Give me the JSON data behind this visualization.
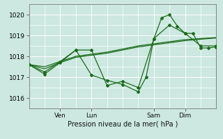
{
  "bg_color": "#cce8e0",
  "grid_color": "#ffffff",
  "line_color": "#1a6b1a",
  "marker_color": "#1a6b1a",
  "xlim": [
    0,
    72
  ],
  "ylim": [
    1015.5,
    1020.5
  ],
  "yticks": [
    1016,
    1017,
    1018,
    1019,
    1020
  ],
  "xtick_labels": [
    "Ven",
    "Lun",
    "Sam",
    "Dim"
  ],
  "xtick_positions": [
    12,
    24,
    48,
    60
  ],
  "xlabel": "Pression niveau de la mer( hPa )",
  "series1_x": [
    0,
    6,
    12,
    18,
    24,
    30,
    36,
    42,
    48,
    54,
    60,
    66,
    72
  ],
  "series1_y": [
    1017.6,
    1017.5,
    1017.75,
    1018.0,
    1018.1,
    1018.2,
    1018.35,
    1018.5,
    1018.6,
    1018.7,
    1018.8,
    1018.85,
    1018.9
  ],
  "series2_x": [
    0,
    6,
    12,
    18,
    24,
    30,
    36,
    42,
    48,
    54,
    60,
    66,
    72
  ],
  "series2_y": [
    1017.6,
    1017.4,
    1017.7,
    1017.95,
    1018.05,
    1018.15,
    1018.3,
    1018.45,
    1018.55,
    1018.65,
    1018.75,
    1018.82,
    1018.88
  ],
  "series3_x": [
    0,
    6,
    12,
    18,
    24,
    30,
    36,
    42,
    48,
    54,
    60,
    66,
    72
  ],
  "series3_y": [
    1017.6,
    1017.25,
    1017.75,
    1018.3,
    1018.3,
    1016.6,
    1016.8,
    1016.5,
    1018.85,
    1019.5,
    1019.1,
    1018.5,
    1018.5
  ],
  "series4_x": [
    0,
    6,
    12,
    18,
    24,
    30,
    36,
    42,
    45,
    48,
    51,
    54,
    57,
    60,
    63,
    66,
    69,
    72
  ],
  "series4_y": [
    1017.6,
    1017.15,
    1017.7,
    1018.3,
    1017.1,
    1016.85,
    1016.65,
    1016.3,
    1017.0,
    1018.85,
    1019.85,
    1020.0,
    1019.45,
    1019.1,
    1019.1,
    1018.4,
    1018.4,
    1018.45
  ]
}
